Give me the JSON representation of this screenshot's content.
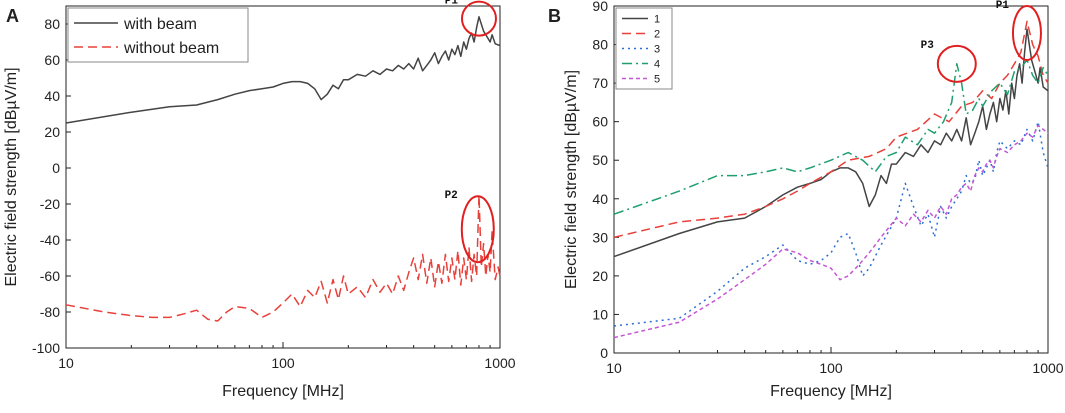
{
  "chart_data": [
    {
      "panel": "A",
      "type": "line",
      "xscale": "log",
      "xlim": [
        10,
        1000
      ],
      "ylim": [
        -100,
        90
      ],
      "xlabel": "Frequency [MHz]",
      "ylabel": "Electric field strength [dBµV/m]",
      "xticks": [
        10,
        100,
        1000
      ],
      "yticks": [
        -100,
        -80,
        -60,
        -40,
        -20,
        0,
        20,
        40,
        60,
        80
      ],
      "legend_position": "top-left",
      "series": [
        {
          "name": "with beam",
          "color": "#444444",
          "style": "solid",
          "x": [
            10,
            20,
            30,
            40,
            50,
            60,
            70,
            80,
            90,
            100,
            110,
            120,
            130,
            140,
            150,
            160,
            170,
            180,
            190,
            200,
            220,
            240,
            260,
            280,
            300,
            320,
            340,
            360,
            380,
            400,
            420,
            440,
            460,
            480,
            500,
            520,
            540,
            560,
            580,
            600,
            620,
            640,
            660,
            680,
            700,
            720,
            740,
            760,
            780,
            800,
            820,
            840,
            860,
            880,
            900,
            920,
            950,
            1000
          ],
          "y": [
            25,
            31,
            34,
            35,
            38,
            41,
            43,
            44,
            45,
            47,
            48,
            48,
            47,
            44,
            38,
            41,
            46,
            44,
            49,
            49,
            52,
            51,
            54,
            52,
            55,
            54,
            57,
            55,
            58,
            55,
            61,
            54,
            57,
            60,
            64,
            58,
            62,
            65,
            60,
            66,
            63,
            68,
            62,
            70,
            66,
            72,
            75,
            70,
            78,
            84,
            80,
            76,
            74,
            72,
            70,
            74,
            69,
            68
          ]
        },
        {
          "name": "without beam",
          "color": "#e8403a",
          "style": "dashed",
          "x": [
            10,
            15,
            20,
            25,
            30,
            35,
            40,
            45,
            50,
            55,
            60,
            70,
            80,
            90,
            100,
            110,
            120,
            130,
            140,
            150,
            160,
            170,
            180,
            190,
            200,
            220,
            240,
            260,
            280,
            300,
            320,
            340,
            360,
            380,
            400,
            420,
            440,
            460,
            480,
            500,
            520,
            540,
            560,
            580,
            600,
            620,
            640,
            660,
            680,
            700,
            720,
            740,
            760,
            780,
            800,
            820,
            840,
            860,
            880,
            900,
            920,
            950,
            980,
            1000
          ],
          "y": [
            -76,
            -80,
            -82,
            -83,
            -83,
            -81,
            -79,
            -84,
            -85,
            -80,
            -77,
            -78,
            -83,
            -80,
            -75,
            -70,
            -77,
            -68,
            -72,
            -63,
            -75,
            -62,
            -73,
            -60,
            -70,
            -66,
            -72,
            -62,
            -69,
            -64,
            -70,
            -60,
            -68,
            -58,
            -50,
            -62,
            -48,
            -64,
            -50,
            -66,
            -52,
            -64,
            -48,
            -63,
            -50,
            -62,
            -46,
            -65,
            -50,
            -62,
            -44,
            -63,
            -48,
            -60,
            -15,
            -55,
            -42,
            -60,
            -48,
            -58,
            -35,
            -62,
            -55,
            -60
          ]
        }
      ],
      "annotations": [
        {
          "label": "P1",
          "x": 800,
          "y": 83
        },
        {
          "label": "P2",
          "x": 790,
          "y": -34
        }
      ]
    },
    {
      "panel": "B",
      "type": "line",
      "xscale": "log",
      "xlim": [
        10,
        1000
      ],
      "ylim": [
        0,
        90
      ],
      "xlabel": "Frequency [MHz]",
      "ylabel": "Electric field strength [dBµV/m]",
      "xticks": [
        10,
        100,
        1000
      ],
      "yticks": [
        0,
        10,
        20,
        30,
        40,
        50,
        60,
        70,
        80,
        90
      ],
      "legend_position": "top-left",
      "series": [
        {
          "name": "1",
          "color": "#444444",
          "style": "solid",
          "x": [
            10,
            20,
            30,
            40,
            50,
            60,
            70,
            80,
            90,
            100,
            110,
            120,
            130,
            140,
            150,
            160,
            170,
            180,
            190,
            200,
            220,
            240,
            260,
            280,
            300,
            320,
            340,
            360,
            380,
            400,
            420,
            440,
            460,
            480,
            500,
            520,
            540,
            560,
            580,
            600,
            620,
            640,
            660,
            680,
            700,
            720,
            740,
            760,
            780,
            800,
            820,
            840,
            860,
            880,
            900,
            920,
            950,
            1000
          ],
          "y": [
            25,
            31,
            34,
            35,
            38,
            41,
            43,
            44,
            45,
            47,
            48,
            48,
            47,
            44,
            38,
            41,
            46,
            44,
            49,
            49,
            52,
            51,
            54,
            52,
            55,
            54,
            57,
            55,
            58,
            55,
            61,
            54,
            57,
            60,
            64,
            58,
            62,
            65,
            60,
            66,
            63,
            68,
            62,
            70,
            66,
            72,
            75,
            70,
            78,
            84,
            80,
            76,
            74,
            72,
            70,
            74,
            69,
            68
          ]
        },
        {
          "name": "2",
          "color": "#e8403a",
          "style": "dashed",
          "x": [
            10,
            20,
            30,
            40,
            50,
            60,
            70,
            80,
            100,
            120,
            150,
            180,
            200,
            250,
            300,
            350,
            400,
            450,
            500,
            550,
            600,
            650,
            700,
            750,
            800,
            850,
            900,
            950,
            1000
          ],
          "y": [
            30,
            34,
            35,
            36,
            38,
            40,
            42,
            44,
            47,
            50,
            51,
            53,
            56,
            58,
            62,
            60,
            64,
            65,
            68,
            66,
            70,
            72,
            75,
            78,
            86,
            80,
            77,
            72,
            70
          ]
        },
        {
          "name": "3",
          "color": "#2a6fd6",
          "style": "dotted",
          "x": [
            10,
            20,
            30,
            40,
            50,
            60,
            70,
            80,
            90,
            100,
            110,
            120,
            130,
            140,
            150,
            170,
            200,
            220,
            240,
            260,
            280,
            300,
            320,
            340,
            360,
            380,
            400,
            420,
            440,
            460,
            480,
            500,
            520,
            540,
            560,
            580,
            600,
            650,
            700,
            750,
            800,
            850,
            900,
            950,
            1000
          ],
          "y": [
            7,
            9,
            16,
            22,
            25,
            28,
            24,
            23,
            24,
            26,
            30,
            31,
            26,
            20,
            22,
            28,
            35,
            44,
            38,
            33,
            36,
            30,
            38,
            35,
            38,
            40,
            42,
            46,
            44,
            45,
            50,
            46,
            48,
            50,
            47,
            52,
            55,
            53,
            55,
            54,
            58,
            55,
            60,
            52,
            48
          ]
        },
        {
          "name": "4",
          "color": "#1f9e6e",
          "style": "dashdot",
          "x": [
            10,
            20,
            30,
            40,
            50,
            60,
            70,
            80,
            100,
            120,
            140,
            160,
            180,
            200,
            220,
            250,
            280,
            300,
            330,
            360,
            380,
            400,
            420,
            450,
            480,
            500,
            550,
            600,
            650,
            700,
            750,
            800,
            850,
            900,
            950,
            1000
          ],
          "y": [
            36,
            42,
            46,
            46,
            47,
            48,
            47,
            48,
            50,
            52,
            50,
            47,
            51,
            52,
            56,
            54,
            58,
            57,
            60,
            65,
            75,
            70,
            62,
            63,
            66,
            64,
            68,
            70,
            67,
            73,
            74,
            76,
            72,
            70,
            74,
            72
          ]
        },
        {
          "name": "5",
          "color": "#c457d4",
          "style": "dashed-short",
          "x": [
            10,
            20,
            30,
            40,
            50,
            60,
            70,
            80,
            90,
            100,
            110,
            120,
            130,
            140,
            150,
            170,
            200,
            220,
            240,
            260,
            280,
            300,
            320,
            340,
            360,
            380,
            400,
            420,
            440,
            460,
            480,
            500,
            520,
            540,
            560,
            580,
            600,
            650,
            700,
            750,
            800,
            850,
            900,
            950,
            1000
          ],
          "y": [
            4,
            8,
            14,
            19,
            23,
            27,
            26,
            24,
            23,
            22,
            19,
            20,
            22,
            24,
            26,
            30,
            35,
            33,
            36,
            34,
            37,
            35,
            38,
            36,
            40,
            41,
            43,
            44,
            42,
            46,
            48,
            47,
            49,
            50,
            48,
            51,
            53,
            52,
            54,
            55,
            57,
            56,
            59,
            58,
            57
          ]
        }
      ],
      "annotations": [
        {
          "label": "P1",
          "x": 800,
          "y": 83
        },
        {
          "label": "P3",
          "x": 380,
          "y": 75
        }
      ]
    }
  ]
}
